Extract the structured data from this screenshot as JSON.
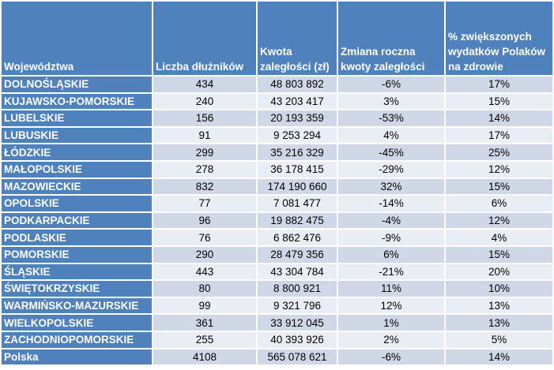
{
  "headers": [
    "Województwa",
    "Liczba dłużników",
    "Kwota zaległości (zł)",
    "Zmiana roczna kwoty zaległości",
    "% zwiększonych wydatków Polaków na zdrowie"
  ],
  "rows": [
    [
      "DOLNOŚLĄSKIE",
      "434",
      "48 803 892",
      "-6%",
      "17%"
    ],
    [
      "KUJAWSKO-POMORSKIE",
      "240",
      "43 203 417",
      "3%",
      "15%"
    ],
    [
      "LUBELSKIE",
      "156",
      "20 193 359",
      "-53%",
      "14%"
    ],
    [
      "LUBUSKIE",
      "91",
      "9 253 294",
      "4%",
      "17%"
    ],
    [
      "ŁÓDZKIE",
      "299",
      "35 216 329",
      "-45%",
      "25%"
    ],
    [
      "MAŁOPOLSKIE",
      "278",
      "36 178 415",
      "-29%",
      "12%"
    ],
    [
      "MAZOWIECKIE",
      "832",
      "174 190 660",
      "32%",
      "15%"
    ],
    [
      "OPOLSKIE",
      "77",
      "7 081 477",
      "-14%",
      "6%"
    ],
    [
      "PODKARPACKIE",
      "96",
      "19 882 475",
      "-4%",
      "12%"
    ],
    [
      "PODLASKIE",
      "76",
      "6 862 476",
      "-9%",
      "4%"
    ],
    [
      "POMORSKIE",
      "290",
      "28 479 356",
      "6%",
      "15%"
    ],
    [
      "ŚLĄSKIE",
      "443",
      "43 304 784",
      "-21%",
      "20%"
    ],
    [
      "ŚWIĘTOKRZYSKIE",
      "80",
      "8 800 921",
      "11%",
      "10%"
    ],
    [
      "WARMIŃSKO-MAZURSKIE",
      "99",
      "9 321 796",
      "12%",
      "13%"
    ],
    [
      "WIELKOPOLSKIE",
      "361",
      "33 912 045",
      "1%",
      "13%"
    ],
    [
      "ZACHODNIOPOMORSKIE",
      "255",
      "40 393 926",
      "2%",
      "5%"
    ],
    [
      "Polska",
      "4108",
      "565 078 621",
      "-6%",
      "14%"
    ]
  ],
  "colors": {
    "header": "#4f81bd",
    "row_odd": "#d0d8e8",
    "row_even": "#e9edf4"
  }
}
